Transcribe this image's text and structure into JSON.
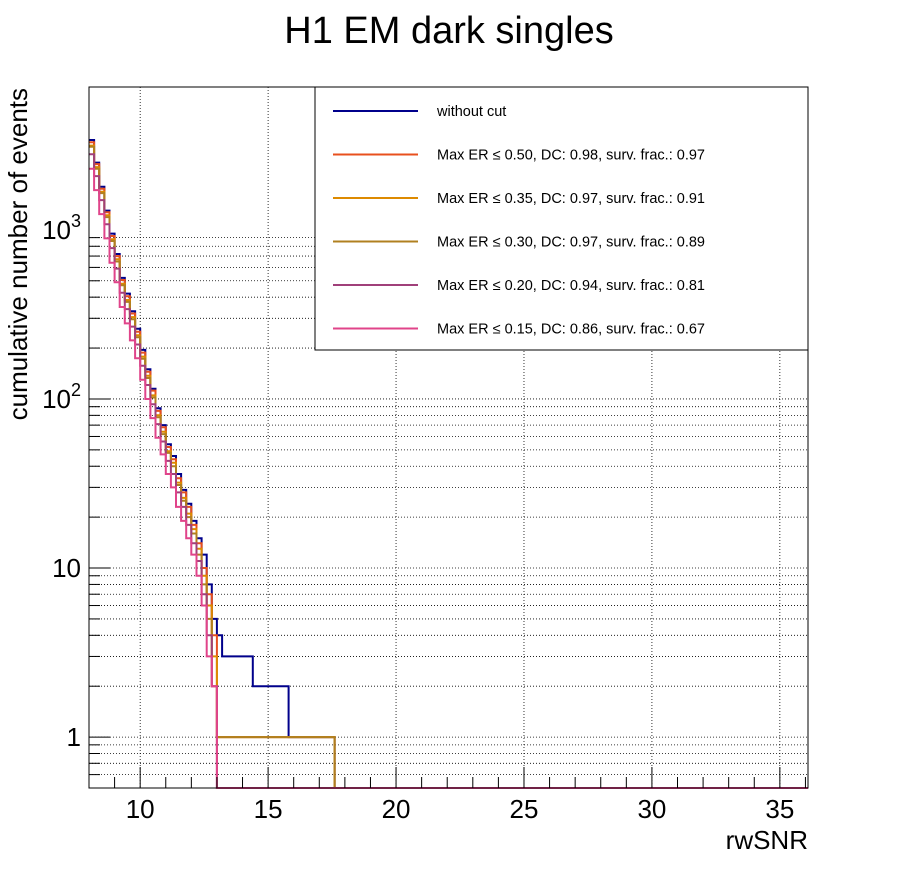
{
  "chart_data": {
    "type": "line",
    "title": "H1 EM dark singles",
    "xlabel": "rwSNR",
    "ylabel": "cumulative number of events",
    "xlim": [
      8,
      36.1
    ],
    "ylim": [
      0.5,
      7000
    ],
    "y_scale": "log",
    "grid": true,
    "legend_position": "top-right",
    "x_ticks": [
      10,
      15,
      20,
      25,
      30,
      35
    ],
    "y_ticks": [
      {
        "value": 1,
        "label": "1"
      },
      {
        "value": 10,
        "label": "10"
      },
      {
        "value": 100,
        "label": "10",
        "exp": "2"
      },
      {
        "value": 1000,
        "label": "10",
        "exp": "3"
      }
    ],
    "bin_edges": [
      8.0,
      8.2,
      8.4,
      8.6,
      8.8,
      9.0,
      9.2,
      9.4,
      9.6,
      9.8,
      10.0,
      10.2,
      10.4,
      10.6,
      10.8,
      11.0,
      11.2,
      11.4,
      11.6,
      11.8,
      12.0,
      12.2,
      12.4,
      12.6,
      12.8,
      13.0,
      13.2,
      14.4,
      15.8,
      17.6,
      36.1
    ],
    "series": [
      {
        "name": "without cut",
        "color": "#00008b",
        "values": [
          3400,
          2500,
          1800,
          1300,
          950,
          720,
          520,
          420,
          330,
          260,
          195,
          150,
          115,
          88,
          70,
          54,
          46,
          36,
          29,
          24,
          19,
          15,
          12,
          8,
          5,
          4,
          3,
          2,
          1,
          0,
          0
        ]
      },
      {
        "name": "Max ER ≤ 0.50, DC: 0.98, surv. frac.: 0.97",
        "color": "#e8501e",
        "values": [
          3300,
          2450,
          1750,
          1270,
          920,
          700,
          505,
          405,
          320,
          250,
          188,
          145,
          112,
          85,
          68,
          52,
          44,
          34,
          28,
          23,
          18,
          14,
          10,
          7,
          4,
          1,
          1,
          1,
          1,
          0,
          0
        ]
      },
      {
        "name": "Max ER ≤ 0.35, DC: 0.97, surv. frac.: 0.91",
        "color": "#dd8a00",
        "values": [
          3150,
          2350,
          1680,
          1220,
          880,
          670,
          480,
          385,
          305,
          238,
          178,
          137,
          105,
          80,
          64,
          49,
          42,
          32,
          26,
          21,
          17,
          13,
          9,
          6,
          3,
          1,
          1,
          1,
          1,
          0,
          0
        ]
      },
      {
        "name": "Max ER ≤ 0.30, DC: 0.97, surv. frac.: 0.89",
        "color": "#b08020",
        "values": [
          3100,
          2300,
          1650,
          1190,
          860,
          650,
          470,
          375,
          296,
          232,
          173,
          133,
          102,
          78,
          62,
          48,
          40,
          31,
          25,
          20,
          16,
          12,
          8,
          5,
          2,
          1,
          1,
          1,
          1,
          0,
          0
        ]
      },
      {
        "name": "Max ER ≤ 0.20, DC: 0.94, surv. frac.: 0.81",
        "color": "#a0407a",
        "values": [
          2800,
          2080,
          1500,
          1080,
          780,
          590,
          425,
          340,
          268,
          210,
          157,
          121,
          93,
          71,
          56,
          43,
          36,
          28,
          23,
          18,
          14,
          11,
          7,
          4,
          2,
          0,
          0,
          0,
          0,
          0,
          0
        ]
      },
      {
        "name": "Max ER ≤ 0.15, DC: 0.86, surv. frac.: 0.67",
        "color": "#e0448a",
        "values": [
          2300,
          1720,
          1240,
          890,
          640,
          490,
          350,
          280,
          222,
          174,
          130,
          100,
          77,
          59,
          47,
          36,
          30,
          23,
          19,
          15,
          12,
          9,
          6,
          3,
          2,
          0,
          0,
          0,
          0,
          0,
          0
        ]
      }
    ]
  }
}
